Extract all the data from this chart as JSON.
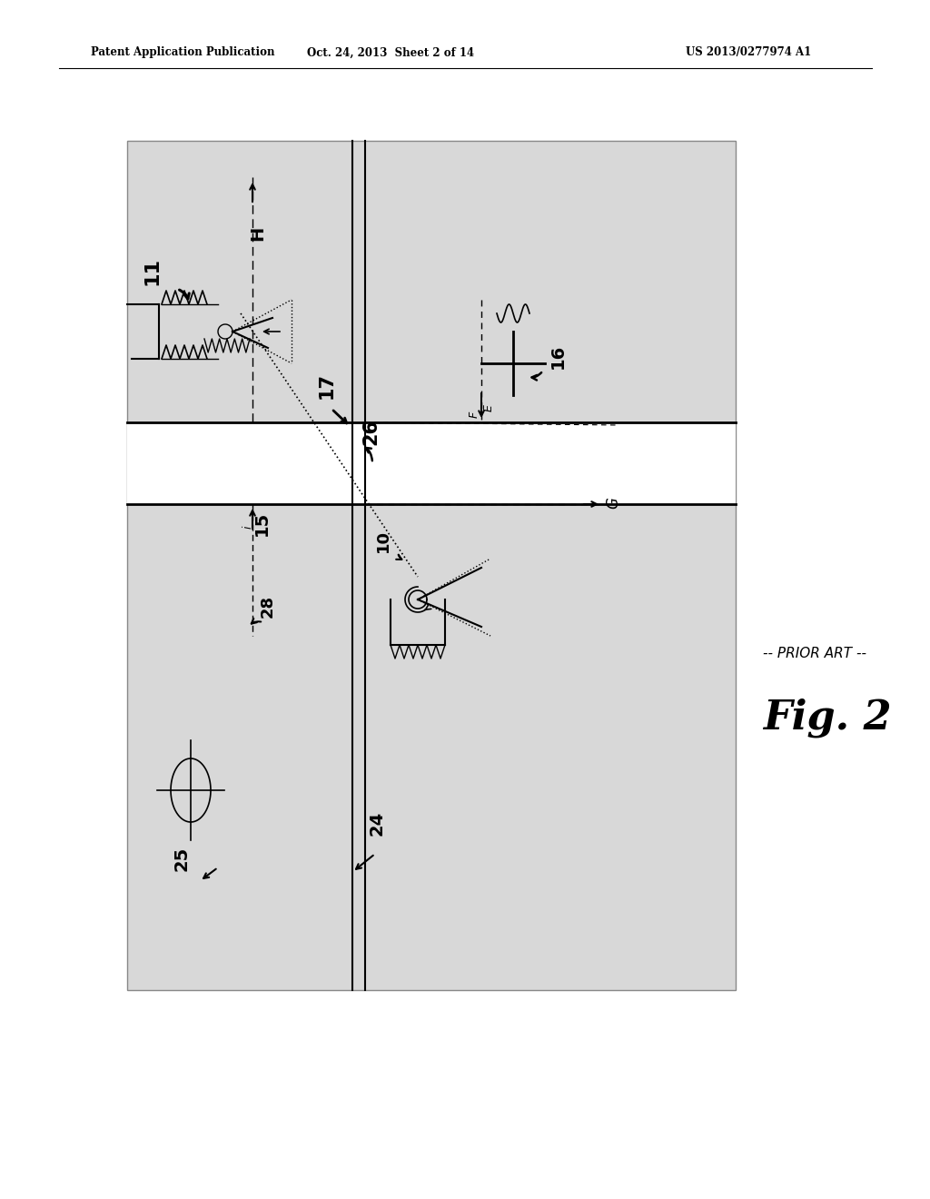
{
  "fig_width": 10.24,
  "fig_height": 13.2,
  "dpi": 100,
  "bg_color": "#ffffff",
  "header_left": "Patent Application Publication",
  "header_center": "Oct. 24, 2013  Sheet 2 of 14",
  "header_right": "US 2013/0277974 A1",
  "fig_label": "Fig. 2",
  "prior_art_label": "-- PRIOR ART --",
  "diagram_bg": "#d8d8d8",
  "diagram_white": "#f0f0f0",
  "pole_color": "#111111",
  "line_color": "#111111"
}
